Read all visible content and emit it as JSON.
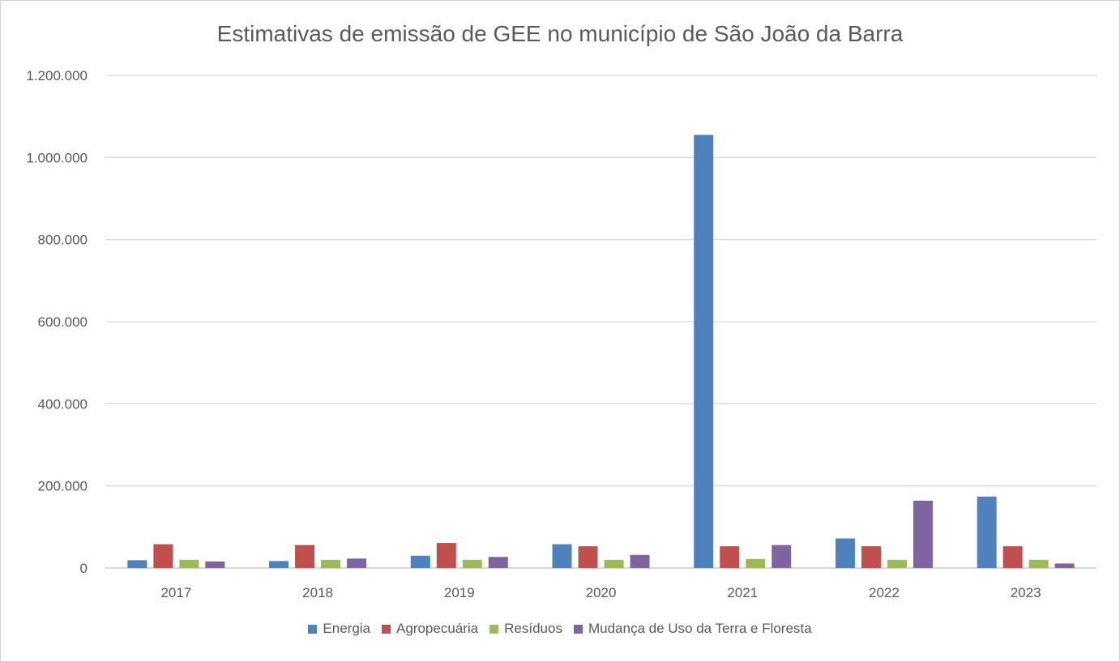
{
  "chart_data": {
    "type": "bar",
    "title": "Estimativas de emissão de GEE no município de São João da Barra",
    "xlabel": "",
    "ylabel": "",
    "categories": [
      "2017",
      "2018",
      "2019",
      "2020",
      "2021",
      "2022",
      "2023"
    ],
    "ylim": [
      0,
      1200000
    ],
    "yticks": [
      0,
      200000,
      400000,
      600000,
      800000,
      1000000,
      1200000
    ],
    "ytick_labels": [
      "0",
      "200.000",
      "400.000",
      "600.000",
      "800.000",
      "1.000.000",
      "1.200.000"
    ],
    "grid": true,
    "legend_position": "bottom",
    "series": [
      {
        "name": "Energia",
        "color": "#4f81bd",
        "values": [
          19000,
          17000,
          30000,
          58000,
          1055000,
          72000,
          174000
        ]
      },
      {
        "name": "Agropecuária",
        "color": "#c0504d",
        "values": [
          58000,
          56000,
          61000,
          53000,
          53000,
          53000,
          53000
        ]
      },
      {
        "name": "Resíduos",
        "color": "#9bbb59",
        "values": [
          20000,
          20000,
          20000,
          20000,
          22000,
          20000,
          20000
        ]
      },
      {
        "name": "Mudança de Uso da Terra e Floresta",
        "color": "#8064a2",
        "values": [
          16000,
          23000,
          27000,
          32000,
          56000,
          164000,
          11000
        ]
      }
    ]
  }
}
